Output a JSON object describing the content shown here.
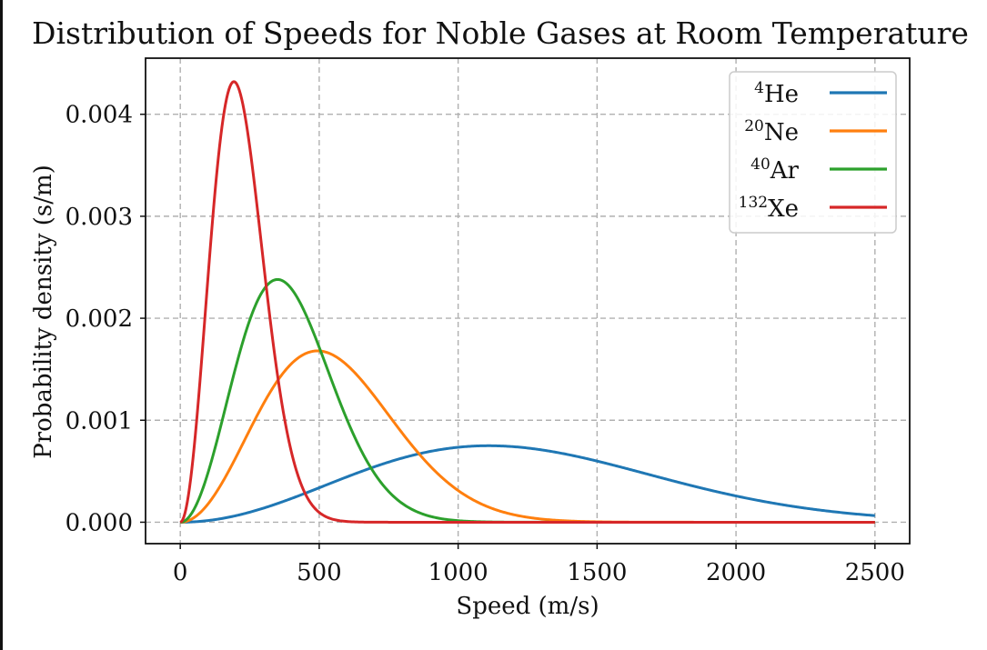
{
  "chart_data": {
    "type": "line",
    "title": "Distribution of Speeds for Noble Gases at Room Temperature",
    "xlabel": "Speed (m/s)",
    "ylabel": "Probability density (s/m)",
    "xlim": [
      -125,
      2625
    ],
    "ylim": [
      -0.00021,
      0.00455
    ],
    "xticks": [
      0,
      500,
      1000,
      1500,
      2000,
      2500
    ],
    "xtick_labels": [
      "0",
      "500",
      "1000",
      "1500",
      "2000",
      "2500"
    ],
    "yticks": [
      0,
      0.001,
      0.002,
      0.003,
      0.004
    ],
    "ytick_labels": [
      "0.000",
      "0.001",
      "0.002",
      "0.003",
      "0.004"
    ],
    "grid": true,
    "legend_position": "top-right",
    "series": [
      {
        "name": "He",
        "mass_number": "4",
        "color": "#1f77b4",
        "peak_x": 1110,
        "peak_y": 0.00075
      },
      {
        "name": "Ne",
        "mass_number": "20",
        "color": "#ff7f0e",
        "peak_x": 494,
        "peak_y": 0.00168
      },
      {
        "name": "Ar",
        "mass_number": "40",
        "color": "#2ca02c",
        "peak_x": 350,
        "peak_y": 0.00238
      },
      {
        "name": "Xe",
        "mass_number": "132",
        "color": "#d62728",
        "peak_x": 193,
        "peak_y": 0.00432
      }
    ],
    "x_range": [
      0,
      2500
    ]
  }
}
